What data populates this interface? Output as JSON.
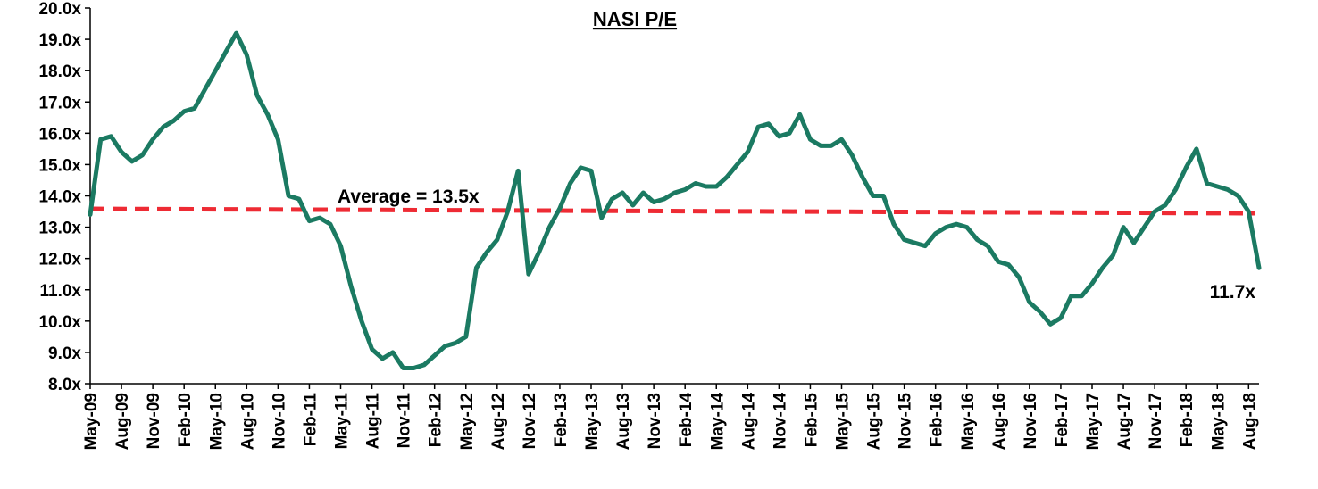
{
  "chart_data": {
    "type": "line",
    "title": "NASI P/E",
    "xlabel": "",
    "ylabel": "",
    "ylim": [
      8,
      20
    ],
    "y_ticks": [
      "8.0x",
      "9.0x",
      "10.0x",
      "11.0x",
      "12.0x",
      "13.0x",
      "14.0x",
      "15.0x",
      "16.0x",
      "17.0x",
      "18.0x",
      "19.0x",
      "20.0x"
    ],
    "x_ticks": [
      "May-09",
      "Aug-09",
      "Nov-09",
      "Feb-10",
      "May-10",
      "Aug-10",
      "Nov-10",
      "Feb-11",
      "May-11",
      "Aug-11",
      "Nov-11",
      "Feb-12",
      "May-12",
      "Aug-12",
      "Nov-12",
      "Feb-13",
      "May-13",
      "Aug-13",
      "Nov-13",
      "Feb-14",
      "May-14",
      "Aug-14",
      "Nov-14",
      "Feb-15",
      "May-15",
      "Aug-15",
      "Nov-15",
      "Feb-16",
      "May-16",
      "Aug-16",
      "Nov-16",
      "Feb-17",
      "May-17",
      "Aug-17",
      "Nov-17",
      "Feb-18",
      "May-18",
      "Aug-18"
    ],
    "grid": false,
    "legend": "none",
    "series": [
      {
        "name": "",
        "color": "#1b7a62",
        "points": [
          [
            "May-09",
            13.4
          ],
          [
            "Jun-09",
            15.8
          ],
          [
            "Jul-09",
            15.9
          ],
          [
            "Aug-09",
            15.4
          ],
          [
            "Sep-09",
            15.1
          ],
          [
            "Oct-09",
            15.3
          ],
          [
            "Nov-09",
            15.8
          ],
          [
            "Dec-09",
            16.2
          ],
          [
            "Jan-10",
            16.4
          ],
          [
            "Feb-10",
            16.7
          ],
          [
            "Mar-10",
            16.8
          ],
          [
            "Apr-10",
            17.4
          ],
          [
            "May-10",
            18.0
          ],
          [
            "Jun-10",
            18.6
          ],
          [
            "Jul-10",
            19.2
          ],
          [
            "Aug-10",
            18.5
          ],
          [
            "Sep-10",
            17.2
          ],
          [
            "Oct-10",
            16.6
          ],
          [
            "Nov-10",
            15.8
          ],
          [
            "Dec-10",
            14.0
          ],
          [
            "Jan-11",
            13.9
          ],
          [
            "Feb-11",
            13.2
          ],
          [
            "Mar-11",
            13.3
          ],
          [
            "Apr-11",
            13.1
          ],
          [
            "May-11",
            12.4
          ],
          [
            "Jun-11",
            11.1
          ],
          [
            "Jul-11",
            10.0
          ],
          [
            "Aug-11",
            9.1
          ],
          [
            "Sep-11",
            8.8
          ],
          [
            "Oct-11",
            9.0
          ],
          [
            "Nov-11",
            8.5
          ],
          [
            "Dec-11",
            8.5
          ],
          [
            "Jan-12",
            8.6
          ],
          [
            "Feb-12",
            8.9
          ],
          [
            "Mar-12",
            9.2
          ],
          [
            "Apr-12",
            9.3
          ],
          [
            "May-12",
            9.5
          ],
          [
            "Jun-12",
            11.7
          ],
          [
            "Jul-12",
            12.2
          ],
          [
            "Aug-12",
            12.6
          ],
          [
            "Sep-12",
            13.5
          ],
          [
            "Oct-12",
            14.8
          ],
          [
            "Nov-12",
            11.5
          ],
          [
            "Dec-12",
            12.2
          ],
          [
            "Jan-13",
            13.0
          ],
          [
            "Feb-13",
            13.6
          ],
          [
            "Mar-13",
            14.4
          ],
          [
            "Apr-13",
            14.9
          ],
          [
            "May-13",
            14.8
          ],
          [
            "Jun-13",
            13.3
          ],
          [
            "Jul-13",
            13.9
          ],
          [
            "Aug-13",
            14.1
          ],
          [
            "Sep-13",
            13.7
          ],
          [
            "Oct-13",
            14.1
          ],
          [
            "Nov-13",
            13.8
          ],
          [
            "Dec-13",
            13.9
          ],
          [
            "Jan-14",
            14.1
          ],
          [
            "Feb-14",
            14.2
          ],
          [
            "Mar-14",
            14.4
          ],
          [
            "Apr-14",
            14.3
          ],
          [
            "May-14",
            14.3
          ],
          [
            "Jun-14",
            14.6
          ],
          [
            "Jul-14",
            15.0
          ],
          [
            "Aug-14",
            15.4
          ],
          [
            "Sep-14",
            16.2
          ],
          [
            "Oct-14",
            16.3
          ],
          [
            "Nov-14",
            15.9
          ],
          [
            "Dec-14",
            16.0
          ],
          [
            "Jan-15",
            16.6
          ],
          [
            "Feb-15",
            15.8
          ],
          [
            "Mar-15",
            15.6
          ],
          [
            "Apr-15",
            15.6
          ],
          [
            "May-15",
            15.8
          ],
          [
            "Jun-15",
            15.3
          ],
          [
            "Jul-15",
            14.6
          ],
          [
            "Aug-15",
            14.0
          ],
          [
            "Sep-15",
            14.0
          ],
          [
            "Oct-15",
            13.1
          ],
          [
            "Nov-15",
            12.6
          ],
          [
            "Dec-15",
            12.5
          ],
          [
            "Jan-16",
            12.4
          ],
          [
            "Feb-16",
            12.8
          ],
          [
            "Mar-16",
            13.0
          ],
          [
            "Apr-16",
            13.1
          ],
          [
            "May-16",
            13.0
          ],
          [
            "Jun-16",
            12.6
          ],
          [
            "Jul-16",
            12.4
          ],
          [
            "Aug-16",
            11.9
          ],
          [
            "Sep-16",
            11.8
          ],
          [
            "Oct-16",
            11.4
          ],
          [
            "Nov-16",
            10.6
          ],
          [
            "Dec-16",
            10.3
          ],
          [
            "Jan-17",
            9.9
          ],
          [
            "Feb-17",
            10.1
          ],
          [
            "Mar-17",
            10.8
          ],
          [
            "Apr-17",
            10.8
          ],
          [
            "May-17",
            11.2
          ],
          [
            "Jun-17",
            11.7
          ],
          [
            "Jul-17",
            12.1
          ],
          [
            "Aug-17",
            13.0
          ],
          [
            "Sep-17",
            12.5
          ],
          [
            "Oct-17",
            13.0
          ],
          [
            "Nov-17",
            13.5
          ],
          [
            "Dec-17",
            13.7
          ],
          [
            "Jan-18",
            14.2
          ],
          [
            "Feb-18",
            14.9
          ],
          [
            "Mar-18",
            15.5
          ],
          [
            "Apr-18",
            14.4
          ],
          [
            "May-18",
            14.3
          ],
          [
            "Jun-18",
            14.2
          ],
          [
            "Jul-18",
            14.0
          ],
          [
            "Aug-18",
            13.5
          ],
          [
            "Sep-18",
            11.7
          ]
        ]
      }
    ],
    "average": {
      "value": 13.5,
      "label": "Average = 13.5x",
      "color": "#ee2b34",
      "style": "dashed"
    },
    "annotations": [
      {
        "text": "11.7x",
        "at": "Sep-18",
        "value": 11.7
      }
    ]
  }
}
